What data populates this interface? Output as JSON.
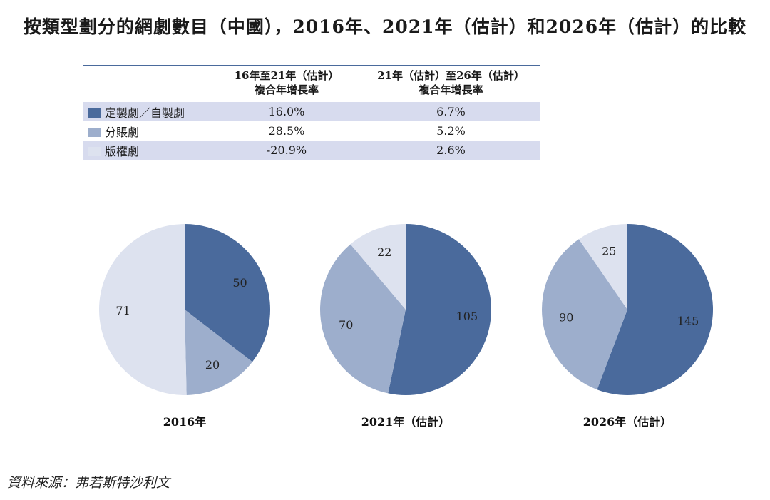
{
  "title": "按類型劃分的網劇數目（中國），2016年、2021年（估計）和2026年（估計）的比較",
  "table": {
    "headers": [
      {
        "line1": "16年至21年（估計）",
        "line2": "複合年增長率"
      },
      {
        "line1": "21年（估計）至26年（估計）",
        "line2": "複合年增長率"
      }
    ],
    "rows": [
      {
        "label": "定製劇／自製劇",
        "color": "#4a6a9c",
        "values": [
          "16.0%",
          "6.7%"
        ]
      },
      {
        "label": "分賬劇",
        "color": "#9daecc",
        "values": [
          "28.5%",
          "5.2%"
        ]
      },
      {
        "label": "版權劇",
        "color": "#dde2ef",
        "values": [
          "-20.9%",
          "2.6%"
        ]
      }
    ]
  },
  "chart_data": {
    "type": "pie",
    "categories": [
      "定製劇／自製劇",
      "分賬劇",
      "版權劇"
    ],
    "colors": [
      "#4a6a9c",
      "#9daecc",
      "#dde2ef"
    ],
    "charts": [
      {
        "label": "2016年",
        "values": [
          50,
          20,
          71
        ]
      },
      {
        "label": "2021年（估計）",
        "values": [
          105,
          70,
          22
        ]
      },
      {
        "label": "2026年（估計）",
        "values": [
          145,
          90,
          25
        ]
      }
    ]
  },
  "source": "資料來源：弗若斯特沙利文"
}
